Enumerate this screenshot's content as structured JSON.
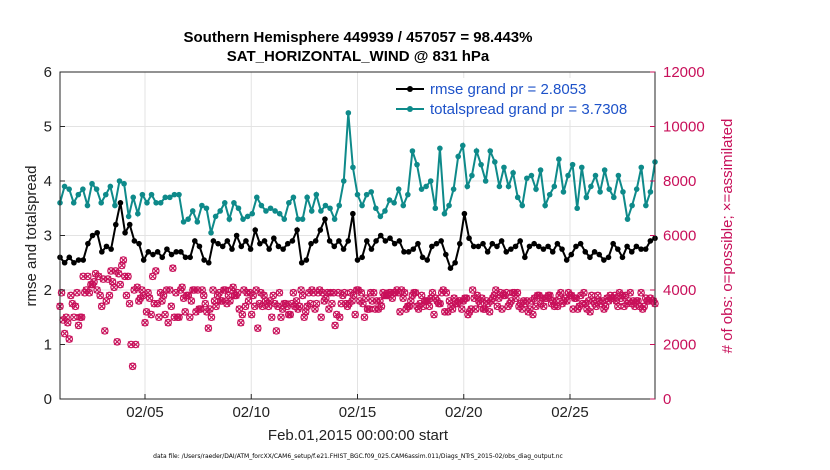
{
  "chart_data": {
    "type": "line",
    "title": "Southern Hemisphere 449939 / 457057 = 98.443%",
    "subtitle": "SAT_HORIZONTAL_WIND @ 831 hPa",
    "xlabel": "Feb.01,2015 00:00:00 start",
    "ylabel_left": "rmse and totalspread",
    "ylabel_right": "# of obs: o=possible; ×=assimilated",
    "xlim": [
      1,
      29
    ],
    "ylim_left": [
      0,
      6
    ],
    "ylim_right": [
      0,
      12000
    ],
    "x_ticks": [
      {
        "value": 5,
        "label": "02/05"
      },
      {
        "value": 10,
        "label": "02/10"
      },
      {
        "value": 15,
        "label": "02/15"
      },
      {
        "value": 20,
        "label": "02/20"
      },
      {
        "value": 25,
        "label": "02/25"
      }
    ],
    "y_ticks_left": [
      "0",
      "1",
      "2",
      "3",
      "4",
      "5",
      "6"
    ],
    "y_ticks_right": [
      "0",
      "2000",
      "4000",
      "6000",
      "8000",
      "10000",
      "12000"
    ],
    "grid": true,
    "legend_position": "top-right",
    "colors": {
      "rmse": "#000000",
      "spread": "#0e8a8a",
      "obs": "#c8105a",
      "legend_text": "#1d52c9"
    },
    "series": [
      {
        "name": "rmse grand pr = 2.8053",
        "axis": "left",
        "values": [
          2.6,
          2.5,
          2.6,
          2.5,
          2.55,
          2.55,
          2.85,
          3.0,
          3.05,
          2.7,
          2.8,
          2.75,
          3.2,
          3.6,
          3.05,
          3.2,
          2.9,
          2.85,
          2.55,
          2.7,
          2.65,
          2.7,
          2.6,
          2.75,
          2.65,
          2.7,
          2.7,
          2.6,
          2.6,
          2.9,
          2.8,
          2.55,
          2.5,
          2.9,
          2.85,
          2.8,
          2.9,
          2.75,
          3.0,
          2.8,
          2.9,
          2.75,
          3.1,
          2.85,
          2.9,
          2.75,
          2.95,
          2.8,
          2.75,
          2.85,
          2.9,
          3.1,
          2.5,
          2.55,
          2.85,
          2.9,
          3.1,
          3.3,
          2.9,
          2.8,
          2.9,
          2.75,
          2.9,
          3.4,
          2.55,
          2.6,
          2.9,
          2.75,
          2.9,
          3.0,
          2.9,
          2.95,
          2.85,
          2.9,
          2.7,
          2.7,
          2.75,
          2.85,
          2.6,
          2.55,
          2.8,
          2.85,
          2.9,
          2.65,
          2.4,
          2.5,
          2.85,
          3.4,
          2.95,
          2.8,
          2.8,
          2.85,
          2.7,
          2.85,
          2.8,
          2.9,
          2.7,
          2.75,
          2.8,
          2.9,
          2.6,
          2.8,
          2.85,
          2.8,
          2.75,
          2.8,
          2.7,
          2.85,
          2.75,
          2.55,
          2.65,
          2.8,
          2.85,
          2.7,
          2.6,
          2.7,
          2.65,
          2.55,
          2.6,
          2.85,
          2.75,
          2.6,
          2.8,
          2.7,
          2.8,
          2.75,
          2.75,
          2.9,
          2.95
        ]
      },
      {
        "name": "totalspread grand pr = 3.7308",
        "axis": "left",
        "values": [
          3.6,
          3.9,
          3.85,
          3.6,
          3.75,
          3.85,
          3.55,
          3.95,
          3.85,
          3.6,
          3.75,
          3.9,
          3.55,
          4.0,
          3.95,
          3.35,
          3.7,
          3.4,
          3.75,
          3.6,
          3.75,
          3.6,
          3.6,
          3.7,
          3.7,
          3.75,
          3.75,
          3.25,
          3.3,
          3.45,
          3.25,
          3.55,
          3.5,
          3.05,
          3.35,
          3.45,
          3.6,
          3.3,
          3.6,
          3.5,
          3.3,
          3.35,
          3.4,
          3.7,
          3.55,
          3.45,
          3.5,
          3.45,
          3.4,
          3.3,
          3.6,
          3.7,
          3.3,
          3.3,
          3.7,
          3.45,
          3.75,
          3.45,
          3.55,
          3.5,
          3.3,
          3.55,
          4.0,
          5.25,
          4.25,
          3.75,
          3.55,
          3.75,
          3.8,
          3.5,
          3.35,
          3.45,
          3.65,
          3.6,
          3.85,
          3.55,
          3.75,
          4.55,
          4.3,
          3.85,
          3.9,
          4.0,
          3.5,
          4.6,
          3.4,
          3.55,
          3.85,
          4.45,
          4.65,
          3.9,
          4.1,
          4.55,
          4.3,
          4.0,
          4.55,
          4.35,
          3.9,
          4.25,
          3.9,
          4.15,
          3.7,
          3.55,
          4.05,
          4.1,
          3.85,
          4.2,
          3.55,
          3.75,
          3.9,
          4.4,
          3.8,
          4.1,
          4.3,
          3.5,
          4.25,
          3.7,
          3.9,
          4.1,
          3.8,
          4.2,
          3.85,
          3.7,
          4.1,
          3.8,
          3.3,
          3.55,
          3.85,
          4.25,
          3.55,
          3.8,
          4.35
        ]
      },
      {
        "name": "obs possible",
        "axis": "right",
        "values": [
          3400,
          3900,
          2900,
          2400,
          3000,
          2800,
          2200,
          3800,
          3500,
          3000,
          3400,
          3900,
          2700,
          3000,
          3000,
          4500,
          3900,
          4000,
          4500,
          3900,
          4200,
          4200,
          4300,
          4600,
          4000,
          4500,
          3800,
          3400,
          4400,
          2500,
          3600,
          4400,
          3800,
          4700,
          4300,
          4100,
          4700,
          2100,
          4600,
          4200,
          4900,
          5100,
          4500,
          3800,
          4500,
          3500,
          2000,
          1200,
          4000,
          2000,
          4100,
          3600,
          3700,
          4000,
          3800,
          2800,
          3200,
          3900,
          3700,
          3100,
          4500,
          3500,
          4700,
          3500,
          3000,
          3900,
          3600,
          3800,
          3100,
          4000,
          2800,
          4000,
          3400,
          4800,
          3000,
          3900,
          3000,
          3000,
          4000,
          4100,
          3700,
          3200,
          3800,
          3800,
          3000,
          3600,
          4000,
          4000,
          3200,
          4000,
          3300,
          3300,
          4000,
          3800,
          3500,
          3200,
          2600,
          3300,
          3000,
          4000,
          3600,
          3400,
          3800,
          3900,
          3600,
          3600,
          4000,
          4000,
          3500,
          3800,
          3600,
          4000,
          4100,
          3800,
          3800,
          3900,
          3300,
          2800,
          3100,
          4000,
          3400,
          3900,
          3600,
          3900,
          3100,
          3800,
          3400,
          4000,
          2600,
          3500,
          3900,
          3400,
          3800,
          3600,
          3500,
          3400,
          3600,
          3000,
          3800,
          3500,
          2500,
          3400,
          3900,
          3000,
          3300,
          3500,
          3500,
          3400,
          3100,
          3100,
          3500,
          3900,
          3400,
          3600,
          3300,
          3400,
          4000,
          3800,
          3000,
          3200,
          3400,
          3900,
          3500,
          4000,
          3900,
          3300,
          3500,
          3900,
          4000,
          3000,
          3900,
          3600,
          3700,
          3900,
          3300,
          3900,
          3500,
          3900,
          2700,
          3100,
          3900,
          3000,
          3500,
          3800,
          3900,
          3500,
          3400,
          3500,
          3900,
          3600,
          3800,
          3100,
          4000,
          4000,
          3600,
          3900,
          3500,
          3000,
          3700,
          3300,
          3300,
          3900,
          3600,
          3900,
          3300,
          3600,
          3300,
          3600,
          3400,
          3900,
          3800,
          3800,
          3800,
          3900,
          3900,
          3700,
          3900,
          3900,
          4000,
          3900,
          3200,
          4000,
          3700,
          3900,
          3300,
          3400,
          3400,
          3600,
          3800,
          3900,
          3900,
          3400,
          3300,
          3500,
          3800,
          3400,
          3600,
          3600,
          3600,
          3400,
          3700,
          3900,
          3100,
          3700,
          3600,
          3500,
          3500,
          3900,
          4000,
          3200,
          3900,
          3200,
          3600,
          3400,
          3300,
          3700,
          3500,
          3500,
          3600,
          3600,
          3300,
          3600,
          3700,
          3700,
          3100,
          3200,
          3300,
          4000,
          3700,
          3300,
          3800,
          3600,
          3500,
          3700,
          3300,
          3300,
          3600,
          3500,
          3200,
          3600,
          3700,
          3800,
          4000,
          3400,
          3700,
          3900,
          3300,
          3800,
          3800,
          3900,
          3400,
          3500,
          3600,
          3900,
          3900,
          3700,
          3900,
          3400,
          3500,
          3300,
          3600,
          3500,
          3600,
          3200,
          3300,
          3600,
          3100,
          3700,
          3400,
          3800,
          3800,
          3500,
          3700,
          3400,
          3700,
          3700,
          3800,
          3800,
          3500,
          3600,
          3400,
          3600,
          3400,
          3800,
          3900,
          3500,
          3600,
          3700,
          3600,
          3900,
          3800,
          3800,
          3300,
          3700,
          3700,
          3300,
          3400,
          3800,
          3500,
          3900,
          3500,
          3300,
          3600,
          3200,
          3800,
          3600,
          3500,
          3400,
          3800,
          3600,
          3500,
          3600,
          3300,
          3400,
          3700,
          3600,
          3800,
          3700,
          3700,
          3800,
          3600,
          3400,
          3900,
          3700,
          3800,
          3400,
          3800,
          3500,
          3600,
          3900,
          3500,
          3600,
          3400,
          3600,
          3600,
          3400,
          3900,
          3300,
          3400,
          3700,
          3600,
          3600,
          3700,
          3600,
          3600,
          3500
        ]
      }
    ],
    "footnote": "data file: /Users/raeder/DAI/ATM_forcXX/CAM6_setup/f.e21.FHIST_BGC.f09_025.CAM6assim.011/Diags_NTrS_2015-02/obs_diag_output.nc"
  }
}
